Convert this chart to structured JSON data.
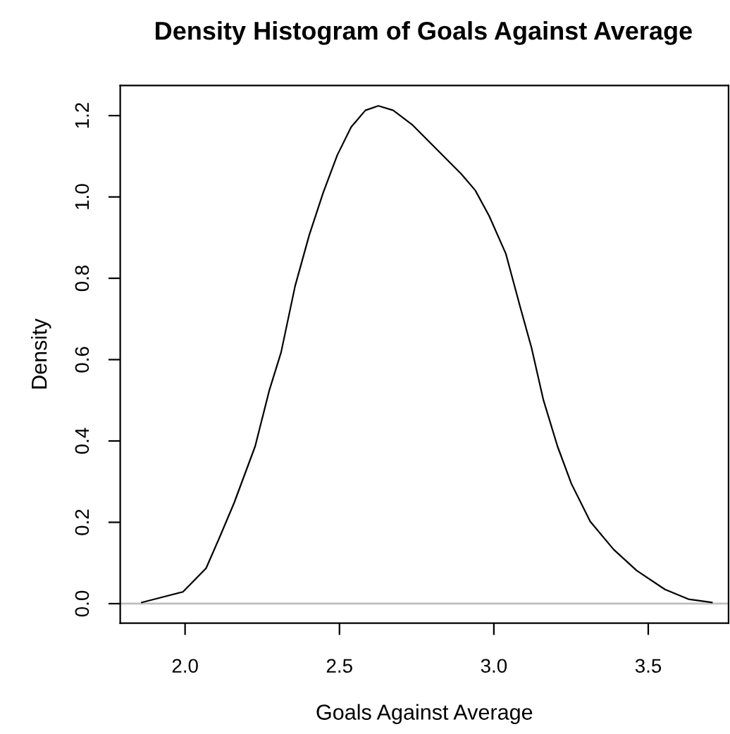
{
  "chart_data": {
    "type": "line",
    "title": "Density Histogram of Goals Against Average",
    "xlabel": "Goals Against Average",
    "ylabel": "Density",
    "x": [
      1.86,
      1.993,
      2.068,
      2.114,
      2.159,
      2.227,
      2.273,
      2.311,
      2.356,
      2.402,
      2.447,
      2.493,
      2.538,
      2.584,
      2.626,
      2.674,
      2.735,
      2.811,
      2.894,
      2.94,
      2.985,
      3.039,
      3.084,
      3.122,
      3.16,
      3.206,
      3.251,
      3.312,
      3.388,
      3.463,
      3.554,
      3.63,
      3.706
    ],
    "series": [
      {
        "color": "#000000",
        "values": [
          0.003,
          0.029,
          0.087,
          0.167,
          0.248,
          0.387,
          0.525,
          0.618,
          0.78,
          0.906,
          1.01,
          1.103,
          1.172,
          1.213,
          1.224,
          1.213,
          1.178,
          1.12,
          1.057,
          1.016,
          0.953,
          0.86,
          0.733,
          0.629,
          0.502,
          0.387,
          0.295,
          0.202,
          0.133,
          0.081,
          0.035,
          0.011,
          0.003
        ]
      }
    ],
    "xlim": [
      1.79,
      3.76
    ],
    "ylim": [
      -0.048,
      1.274
    ],
    "xticks": [
      {
        "value": 2,
        "label": "2.0"
      },
      2.5,
      {
        "value": 3,
        "label": "3.0"
      },
      3.5
    ],
    "yticks": [
      {
        "value": 0,
        "label": "0.0"
      },
      0.2,
      0.4,
      0.6,
      0.8,
      {
        "value": 1,
        "label": "1.0"
      },
      1.2
    ],
    "ref_lines": [
      {
        "axis": "y",
        "value": 0,
        "color": "#bebebe"
      }
    ],
    "grid": false,
    "legend": false,
    "marker": "none",
    "line_style": "solid"
  }
}
